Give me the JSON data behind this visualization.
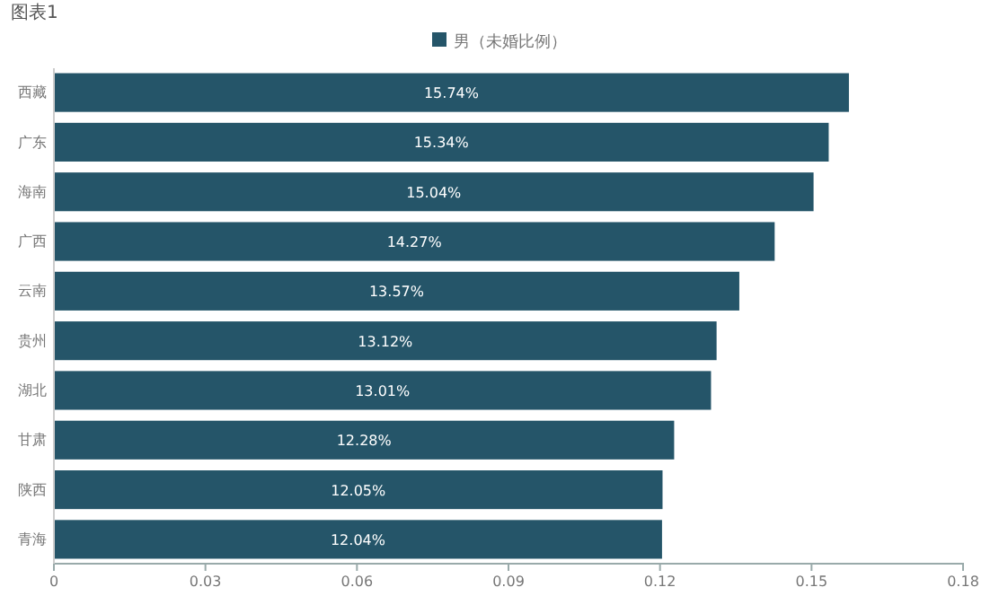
{
  "chart_data": {
    "type": "bar",
    "orientation": "horizontal",
    "title": "图表1",
    "categories": [
      "西藏",
      "广东",
      "海南",
      "广西",
      "云南",
      "贵州",
      "湖北",
      "甘肃",
      "陕西",
      "青海"
    ],
    "series": [
      {
        "name": "男（未婚比例）",
        "color": "#255569",
        "values": [
          0.1574,
          0.1534,
          0.1504,
          0.1427,
          0.1357,
          0.1312,
          0.1301,
          0.1228,
          0.1205,
          0.1204
        ],
        "value_labels": [
          "15.74%",
          "15.34%",
          "15.04%",
          "14.27%",
          "13.57%",
          "13.12%",
          "13.01%",
          "12.28%",
          "12.05%",
          "12.04%"
        ]
      }
    ],
    "xlim": [
      0,
      0.18
    ],
    "xticks": [
      0,
      0.03,
      0.06,
      0.09,
      0.12,
      0.15,
      0.18
    ],
    "grid": false,
    "legend": "top"
  }
}
